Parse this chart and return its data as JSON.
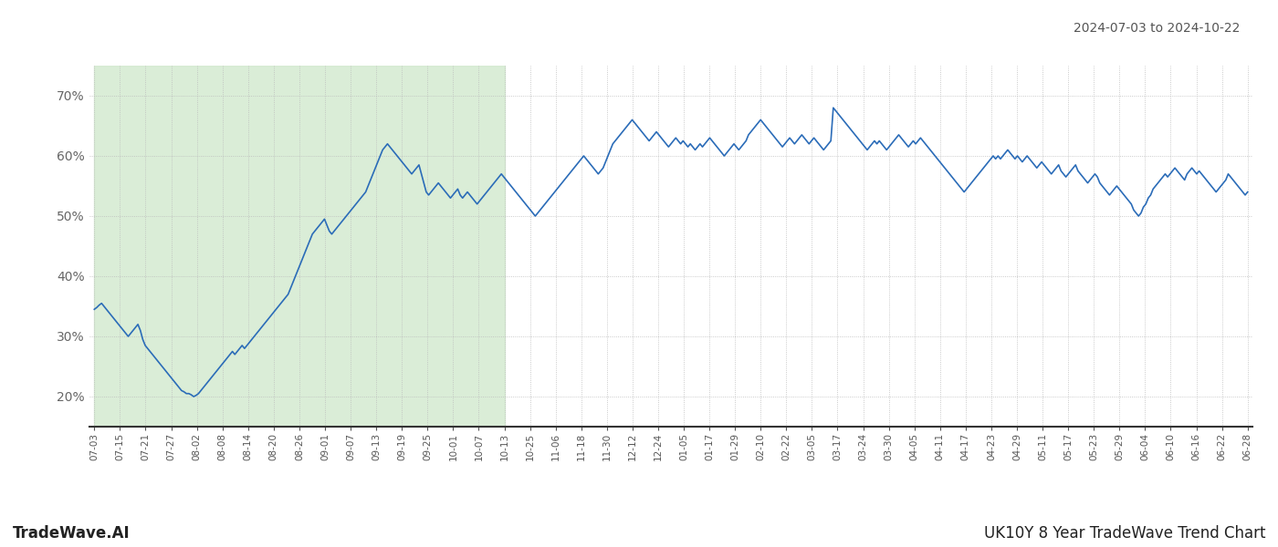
{
  "title_date_range": "2024-07-03 to 2024-10-22",
  "footer_left": "TradeWave.AI",
  "footer_right": "UK10Y 8 Year TradeWave Trend Chart",
  "line_color": "#2b6cb8",
  "line_width": 1.2,
  "background_color": "#ffffff",
  "grid_color": "#bbbbbb",
  "shade_color": "#d4ead0",
  "shade_alpha": 0.85,
  "ylim": [
    15,
    75
  ],
  "yticks": [
    20,
    30,
    40,
    50,
    60,
    70
  ],
  "x_labels": [
    "07-03",
    "07-15",
    "07-21",
    "07-27",
    "08-02",
    "08-08",
    "08-14",
    "08-20",
    "08-26",
    "09-01",
    "09-07",
    "09-13",
    "09-19",
    "09-25",
    "10-01",
    "10-07",
    "10-13",
    "10-25",
    "11-06",
    "11-18",
    "11-30",
    "12-12",
    "12-24",
    "01-05",
    "01-17",
    "01-29",
    "02-10",
    "02-22",
    "03-05",
    "03-17",
    "03-24",
    "03-30",
    "04-05",
    "04-11",
    "04-17",
    "04-23",
    "04-29",
    "05-11",
    "05-17",
    "05-23",
    "05-29",
    "06-04",
    "06-10",
    "06-16",
    "06-22",
    "06-28"
  ],
  "shade_label_start": "07-03",
  "shade_label_end": "10-13",
  "y_values": [
    34.5,
    34.8,
    35.2,
    35.5,
    35.0,
    34.5,
    34.0,
    33.5,
    33.0,
    32.5,
    32.0,
    31.5,
    31.0,
    30.5,
    30.0,
    30.5,
    31.0,
    31.5,
    32.0,
    31.0,
    29.5,
    28.5,
    28.0,
    27.5,
    27.0,
    26.5,
    26.0,
    25.5,
    25.0,
    24.5,
    24.0,
    23.5,
    23.0,
    22.5,
    22.0,
    21.5,
    21.0,
    20.8,
    20.5,
    20.5,
    20.3,
    20.0,
    20.2,
    20.5,
    21.0,
    21.5,
    22.0,
    22.5,
    23.0,
    23.5,
    24.0,
    24.5,
    25.0,
    25.5,
    26.0,
    26.5,
    27.0,
    27.5,
    27.0,
    27.5,
    28.0,
    28.5,
    28.0,
    28.5,
    29.0,
    29.5,
    30.0,
    30.5,
    31.0,
    31.5,
    32.0,
    32.5,
    33.0,
    33.5,
    34.0,
    34.5,
    35.0,
    35.5,
    36.0,
    36.5,
    37.0,
    38.0,
    39.0,
    40.0,
    41.0,
    42.0,
    43.0,
    44.0,
    45.0,
    46.0,
    47.0,
    47.5,
    48.0,
    48.5,
    49.0,
    49.5,
    48.5,
    47.5,
    47.0,
    47.5,
    48.0,
    48.5,
    49.0,
    49.5,
    50.0,
    50.5,
    51.0,
    51.5,
    52.0,
    52.5,
    53.0,
    53.5,
    54.0,
    55.0,
    56.0,
    57.0,
    58.0,
    59.0,
    60.0,
    61.0,
    61.5,
    62.0,
    61.5,
    61.0,
    60.5,
    60.0,
    59.5,
    59.0,
    58.5,
    58.0,
    57.5,
    57.0,
    57.5,
    58.0,
    58.5,
    57.0,
    55.5,
    54.0,
    53.5,
    54.0,
    54.5,
    55.0,
    55.5,
    55.0,
    54.5,
    54.0,
    53.5,
    53.0,
    53.5,
    54.0,
    54.5,
    53.5,
    53.0,
    53.5,
    54.0,
    53.5,
    53.0,
    52.5,
    52.0,
    52.5,
    53.0,
    53.5,
    54.0,
    54.5,
    55.0,
    55.5,
    56.0,
    56.5,
    57.0,
    56.5,
    56.0,
    55.5,
    55.0,
    54.5,
    54.0,
    53.5,
    53.0,
    52.5,
    52.0,
    51.5,
    51.0,
    50.5,
    50.0,
    50.5,
    51.0,
    51.5,
    52.0,
    52.5,
    53.0,
    53.5,
    54.0,
    54.5,
    55.0,
    55.5,
    56.0,
    56.5,
    57.0,
    57.5,
    58.0,
    58.5,
    59.0,
    59.5,
    60.0,
    59.5,
    59.0,
    58.5,
    58.0,
    57.5,
    57.0,
    57.5,
    58.0,
    59.0,
    60.0,
    61.0,
    62.0,
    62.5,
    63.0,
    63.5,
    64.0,
    64.5,
    65.0,
    65.5,
    66.0,
    65.5,
    65.0,
    64.5,
    64.0,
    63.5,
    63.0,
    62.5,
    63.0,
    63.5,
    64.0,
    63.5,
    63.0,
    62.5,
    62.0,
    61.5,
    62.0,
    62.5,
    63.0,
    62.5,
    62.0,
    62.5,
    62.0,
    61.5,
    62.0,
    61.5,
    61.0,
    61.5,
    62.0,
    61.5,
    62.0,
    62.5,
    63.0,
    62.5,
    62.0,
    61.5,
    61.0,
    60.5,
    60.0,
    60.5,
    61.0,
    61.5,
    62.0,
    61.5,
    61.0,
    61.5,
    62.0,
    62.5,
    63.5,
    64.0,
    64.5,
    65.0,
    65.5,
    66.0,
    65.5,
    65.0,
    64.5,
    64.0,
    63.5,
    63.0,
    62.5,
    62.0,
    61.5,
    62.0,
    62.5,
    63.0,
    62.5,
    62.0,
    62.5,
    63.0,
    63.5,
    63.0,
    62.5,
    62.0,
    62.5,
    63.0,
    62.5,
    62.0,
    61.5,
    61.0,
    61.5,
    62.0,
    62.5,
    68.0,
    67.5,
    67.0,
    66.5,
    66.0,
    65.5,
    65.0,
    64.5,
    64.0,
    63.5,
    63.0,
    62.5,
    62.0,
    61.5,
    61.0,
    61.5,
    62.0,
    62.5,
    62.0,
    62.5,
    62.0,
    61.5,
    61.0,
    61.5,
    62.0,
    62.5,
    63.0,
    63.5,
    63.0,
    62.5,
    62.0,
    61.5,
    62.0,
    62.5,
    62.0,
    62.5,
    63.0,
    62.5,
    62.0,
    61.5,
    61.0,
    60.5,
    60.0,
    59.5,
    59.0,
    58.5,
    58.0,
    57.5,
    57.0,
    56.5,
    56.0,
    55.5,
    55.0,
    54.5,
    54.0,
    54.5,
    55.0,
    55.5,
    56.0,
    56.5,
    57.0,
    57.5,
    58.0,
    58.5,
    59.0,
    59.5,
    60.0,
    59.5,
    60.0,
    59.5,
    60.0,
    60.5,
    61.0,
    60.5,
    60.0,
    59.5,
    60.0,
    59.5,
    59.0,
    59.5,
    60.0,
    59.5,
    59.0,
    58.5,
    58.0,
    58.5,
    59.0,
    58.5,
    58.0,
    57.5,
    57.0,
    57.5,
    58.0,
    58.5,
    57.5,
    57.0,
    56.5,
    57.0,
    57.5,
    58.0,
    58.5,
    57.5,
    57.0,
    56.5,
    56.0,
    55.5,
    56.0,
    56.5,
    57.0,
    56.5,
    55.5,
    55.0,
    54.5,
    54.0,
    53.5,
    54.0,
    54.5,
    55.0,
    54.5,
    54.0,
    53.5,
    53.0,
    52.5,
    52.0,
    51.0,
    50.5,
    50.0,
    50.5,
    51.5,
    52.0,
    53.0,
    53.5,
    54.5,
    55.0,
    55.5,
    56.0,
    56.5,
    57.0,
    56.5,
    57.0,
    57.5,
    58.0,
    57.5,
    57.0,
    56.5,
    56.0,
    57.0,
    57.5,
    58.0,
    57.5,
    57.0,
    57.5,
    57.0,
    56.5,
    56.0,
    55.5,
    55.0,
    54.5,
    54.0,
    54.5,
    55.0,
    55.5,
    56.0,
    57.0,
    56.5,
    56.0,
    55.5,
    55.0,
    54.5,
    54.0,
    53.5,
    54.0
  ]
}
